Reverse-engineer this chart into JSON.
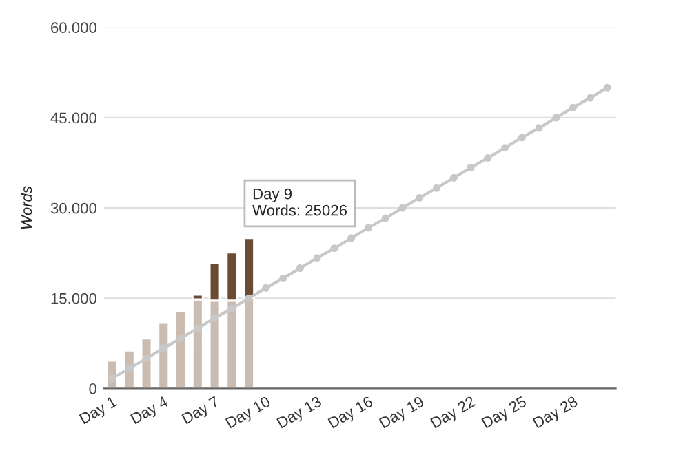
{
  "chart_data": {
    "type": "bar",
    "stacked": true,
    "ylabel": "Words",
    "categories": [
      "Day 1",
      null,
      null,
      "Day 4",
      null,
      null,
      "Day 7",
      null,
      null,
      "Day 10",
      null,
      null,
      "Day 13",
      null,
      null,
      "Day 16",
      null,
      null,
      "Day 19",
      null,
      null,
      "Day 22",
      null,
      null,
      "Day 25",
      null,
      null,
      "Day 28",
      null,
      null
    ],
    "series": [
      {
        "color": "#cbbcb1",
        "values": [
          4600,
          6300,
          8300,
          10900,
          12800,
          14800,
          14600,
          14600,
          15000,
          null,
          null,
          null,
          null,
          null,
          null,
          null,
          null,
          null,
          null,
          null,
          null,
          null,
          null,
          null,
          null,
          null,
          null,
          null,
          null,
          null
        ]
      },
      {
        "color": "#6b4b36",
        "values": [
          null,
          null,
          null,
          null,
          null,
          800,
          6200,
          8000,
          10000,
          null,
          null,
          null,
          null,
          null,
          null,
          null,
          null,
          null,
          null,
          null,
          null,
          null,
          null,
          null,
          null,
          null,
          null,
          null,
          null,
          null
        ]
      },
      {
        "type": "line",
        "color": "#c8c8c8",
        "marker": "circle",
        "values": [
          1700,
          3300,
          5000,
          6700,
          8300,
          10000,
          11700,
          13300,
          15000,
          16700,
          18300,
          20000,
          21700,
          23300,
          25000,
          26700,
          28300,
          30000,
          31700,
          33300,
          35000,
          36700,
          38300,
          40000,
          41700,
          43300,
          45000,
          46700,
          48300,
          50000
        ]
      }
    ],
    "ylim": [
      0,
      60000
    ],
    "yticks": [
      {
        "value": 0,
        "label": "0"
      },
      {
        "value": 15000,
        "label": "15.000"
      },
      {
        "value": 30000,
        "label": "30.000"
      },
      {
        "value": 45000,
        "label": "45.000"
      },
      {
        "value": 60000,
        "label": "60.000"
      }
    ],
    "grid": "y",
    "annotations": [
      "Day 9\nWords: 25026"
    ]
  }
}
